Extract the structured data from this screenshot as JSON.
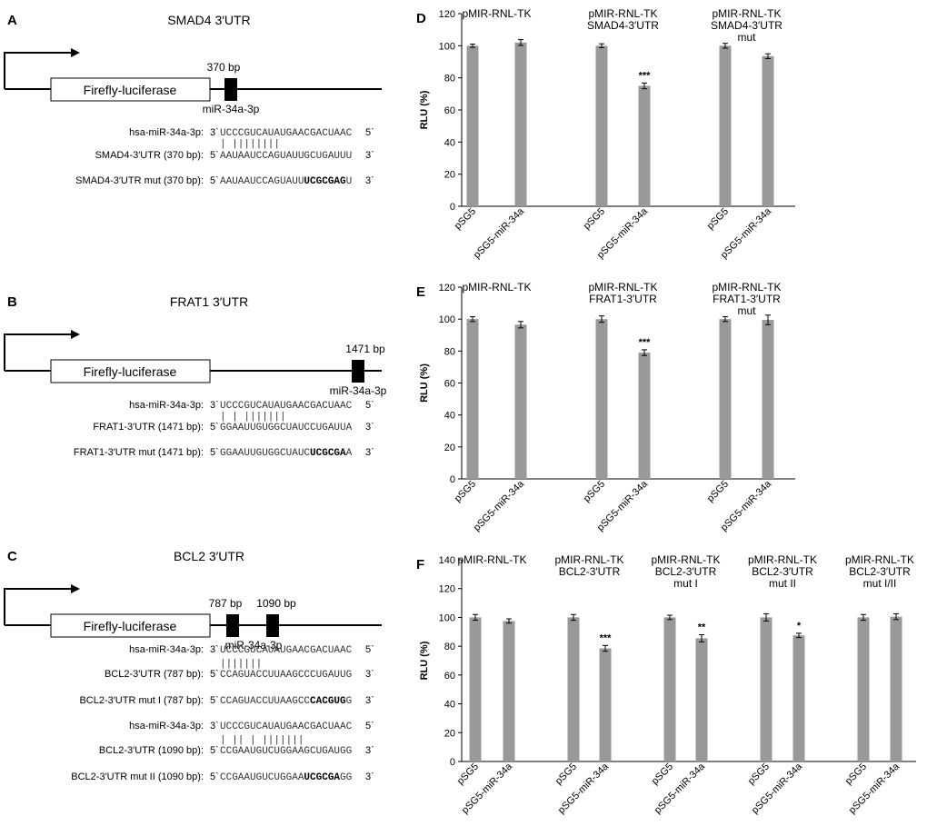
{
  "constructs": [
    {
      "letter": "A",
      "title": "SMAD4 3′UTR",
      "gene_label": "Firefly-luciferase",
      "site_labels": [
        "370 bp"
      ],
      "mirna_label": "miR-34a-3p",
      "alignment": [
        {
          "label": "hsa-miR-34a-3p:",
          "prime_left": "3ˋ",
          "seq": "UCCCGUCAUAUGAACGACUAAC",
          "seq_bold": "",
          "seq_after": "",
          "prime_right": "5ˋ"
        },
        {
          "label": "",
          "pairs": "       |      |||||||| "
        },
        {
          "label": "SMAD4-3′UTR (370 bp):",
          "prime_left": "5ˋ",
          "seq": "AAUAAUCCAGUAUUGCUGAUUU",
          "seq_bold": "",
          "seq_after": "",
          "prime_right": "3ˋ"
        },
        {
          "label": "SMAD4-3′UTR mut (370 bp):",
          "prime_left": "5ˋ",
          "seq": "AAUAAUCCAGUAUU",
          "seq_bold": "UCGCGAG",
          "seq_after": "U",
          "prime_right": "3ˋ"
        }
      ]
    },
    {
      "letter": "B",
      "title": "FRAT1 3′UTR",
      "gene_label": "Firefly-luciferase",
      "site_labels": [
        "1471 bp"
      ],
      "mirna_label": "miR-34a-3p",
      "alignment": [
        {
          "label": "hsa-miR-34a-3p:",
          "prime_left": "3ˋ",
          "seq": "UCCCGUCAUAUGAACGACUAAC",
          "seq_bold": "",
          "seq_after": "",
          "prime_right": "5ˋ"
        },
        {
          "label": "",
          "pairs": "  |    |      ||||||| "
        },
        {
          "label": "FRAT1-3′UTR (1471 bp):",
          "prime_left": "5ˋ",
          "seq": "GGAAUUGUGGCUAUCCUGAUUA",
          "seq_bold": "",
          "seq_after": "",
          "prime_right": "3ˋ"
        },
        {
          "label": "FRAT1-3′UTR mut (1471 bp):",
          "prime_left": "5ˋ",
          "seq": "GGAAUUGUGGCUAUC",
          "seq_bold": "UCGCGA",
          "seq_after": "A",
          "prime_right": "3ˋ"
        }
      ]
    },
    {
      "letter": "C",
      "title": "BCL2 3′UTR",
      "gene_label": "Firefly-luciferase",
      "site_labels": [
        "787 bp",
        "1090 bp"
      ],
      "mirna_label": "miR-34a-3p",
      "alignment": [
        {
          "label": "hsa-miR-34a-3p:",
          "prime_left": "3ˋ",
          "seq": "UCCCGUCAUAUGAACGACUAAC",
          "seq_bold": "",
          "seq_after": "",
          "prime_right": "5ˋ"
        },
        {
          "label": "",
          "pairs": "               ||||||| "
        },
        {
          "label": "BCL2-3′UTR (787 bp):",
          "prime_left": "5ˋ",
          "seq": "CCAGUACCUUAAGCCCUGAUUG",
          "seq_bold": "",
          "seq_after": "",
          "prime_right": "3ˋ"
        },
        {
          "label": "BCL2-3′UTR mut I (787 bp):",
          "prime_left": "5ˋ",
          "seq": "CCAGUACCUUAAGCC",
          "seq_bold": "CACGUG",
          "seq_after": "G",
          "prime_right": "3ˋ"
        },
        {
          "label": "hsa-miR-34a-3p:",
          "prime_left": "3ˋ",
          "seq": "UCCCGUCAUAUGAACGACUAAC",
          "seq_bold": "",
          "seq_after": "",
          "prime_right": "5ˋ"
        },
        {
          "label": "",
          "pairs": "    | ||  |     ||||||| "
        },
        {
          "label": "BCL2-3′UTR (1090 bp):",
          "prime_left": "5ˋ",
          "seq": "CCGAAUGUCUGGAAGCUGAUGG",
          "seq_bold": "",
          "seq_after": "",
          "prime_right": "3ˋ"
        },
        {
          "label": "BCL2-3′UTR mut II (1090 bp):",
          "prime_left": "5ˋ",
          "seq": "CCGAAUGUCUGGAA",
          "seq_bold": "UCGCGA",
          "seq_after": "GG",
          "prime_right": "3ˋ"
        }
      ]
    }
  ],
  "chart_data": [
    {
      "panel": "D",
      "type": "bar",
      "ylabel": "RLU (%)",
      "ylim": [
        0,
        120
      ],
      "yticks": [
        0,
        20,
        40,
        60,
        80,
        100,
        120
      ],
      "bar_color": "#999999",
      "groups": [
        {
          "title": [
            "pMIR-RNL-TK"
          ],
          "bars": [
            {
              "label": "pSG5",
              "value": 100,
              "err": 1
            },
            {
              "label": "pSG5-miR-34a",
              "value": 102,
              "err": 1.8
            }
          ]
        },
        {
          "title": [
            "pMIR-RNL-TK",
            "SMAD4-3′UTR"
          ],
          "bars": [
            {
              "label": "pSG5",
              "value": 100,
              "err": 1.2
            },
            {
              "label": "pSG5-miR-34a",
              "value": 75,
              "err": 1.8,
              "sig": "***"
            }
          ]
        },
        {
          "title": [
            "pMIR-RNL-TK",
            "SMAD4-3′UTR",
            "mut"
          ],
          "bars": [
            {
              "label": "pSG5",
              "value": 100,
              "err": 1.5
            },
            {
              "label": "pSG5-miR-34a",
              "value": 93.5,
              "err": 1.5
            }
          ]
        }
      ]
    },
    {
      "panel": "E",
      "type": "bar",
      "ylabel": "RLU (%)",
      "ylim": [
        0,
        120
      ],
      "yticks": [
        0,
        20,
        40,
        60,
        80,
        100,
        120
      ],
      "bar_color": "#999999",
      "groups": [
        {
          "title": [
            "pMIR-RNL-TK"
          ],
          "bars": [
            {
              "label": "pSG5",
              "value": 100,
              "err": 1.5
            },
            {
              "label": "pSG5-miR-34a",
              "value": 96.5,
              "err": 2
            }
          ]
        },
        {
          "title": [
            "pMIR-RNL-TK",
            "FRAT1-3′UTR"
          ],
          "bars": [
            {
              "label": "pSG5",
              "value": 100,
              "err": 2
            },
            {
              "label": "pSG5-miR-34a",
              "value": 79,
              "err": 1.8,
              "sig": "***"
            }
          ]
        },
        {
          "title": [
            "pMIR-RNL-TK",
            "FRAT1-3′UTR",
            "mut"
          ],
          "bars": [
            {
              "label": "pSG5",
              "value": 100,
              "err": 1.5
            },
            {
              "label": "pSG5-miR-34a",
              "value": 99.5,
              "err": 3
            }
          ]
        }
      ]
    },
    {
      "panel": "F",
      "type": "bar",
      "ylabel": "RLU (%)",
      "ylim": [
        0,
        140
      ],
      "yticks": [
        0,
        20,
        40,
        60,
        80,
        100,
        120,
        140
      ],
      "bar_color": "#999999",
      "groups": [
        {
          "title": [
            "pMIR-RNL-TK"
          ],
          "bars": [
            {
              "label": "pSG5",
              "value": 100,
              "err": 2
            },
            {
              "label": "pSG5-miR-34a",
              "value": 97.5,
              "err": 1.5
            }
          ]
        },
        {
          "title": [
            "pMIR-RNL-TK",
            "BCL2-3′UTR"
          ],
          "bars": [
            {
              "label": "pSG5",
              "value": 100,
              "err": 2
            },
            {
              "label": "pSG5-miR-34a",
              "value": 78.5,
              "err": 2,
              "sig": "***"
            }
          ]
        },
        {
          "title": [
            "pMIR-RNL-TK",
            "BCL2-3′UTR",
            "mut I"
          ],
          "bars": [
            {
              "label": "pSG5",
              "value": 100,
              "err": 1.5
            },
            {
              "label": "pSG5-miR-34a",
              "value": 85.5,
              "err": 2.5,
              "sig": "**"
            }
          ]
        },
        {
          "title": [
            "pMIR-RNL-TK",
            "BCL2-3′UTR",
            "mut II"
          ],
          "bars": [
            {
              "label": "pSG5",
              "value": 100,
              "err": 2.5
            },
            {
              "label": "pSG5-miR-34a",
              "value": 87.5,
              "err": 1.5,
              "sig": "*"
            }
          ]
        },
        {
          "title": [
            "pMIR-RNL-TK",
            "BCL2-3′UTR",
            "mut I/II"
          ],
          "bars": [
            {
              "label": "pSG5",
              "value": 100,
              "err": 2
            },
            {
              "label": "pSG5-miR-34a",
              "value": 100.5,
              "err": 2
            }
          ]
        }
      ]
    }
  ]
}
